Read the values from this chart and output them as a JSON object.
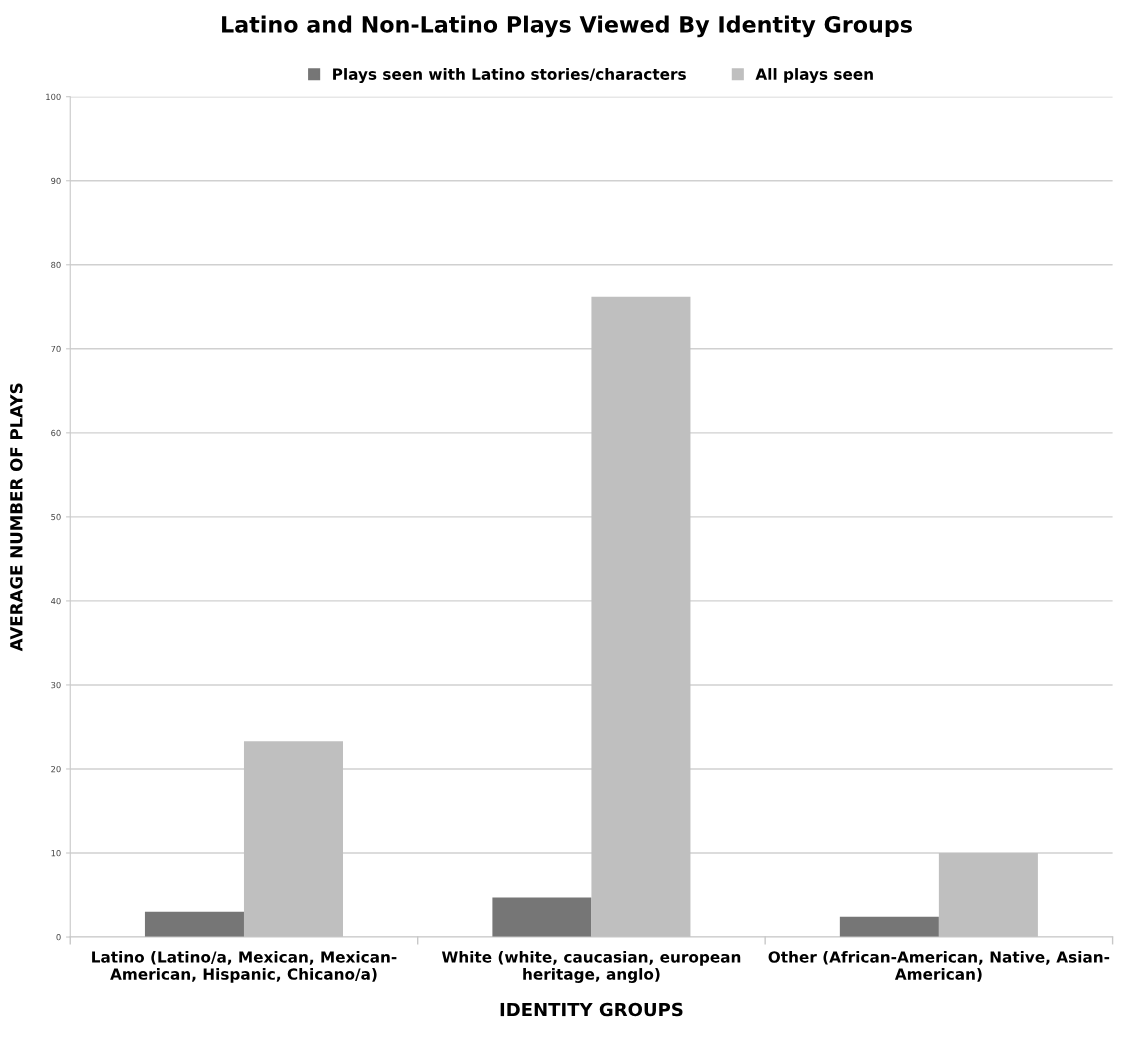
{
  "chart_data": {
    "type": "bar",
    "title": "Latino and Non-Latino Plays Viewed By Identity Groups",
    "xlabel": "IDENTITY GROUPS",
    "ylabel": "AVERAGE NUMBER OF PLAYS",
    "categories": [
      "Latino (Latino/a, Mexican, Mexican-\nAmerican, Hispanic, Chicano/a)",
      "White (white, caucasian, european\nheritage, anglo)",
      "Other (African-American, Native, Asian-\nAmerican)"
    ],
    "series": [
      {
        "name": "Plays seen with Latino stories/characters",
        "color": "#767676",
        "values": [
          3.0,
          4.7,
          2.4
        ]
      },
      {
        "name": "All plays seen",
        "color": "#bfbfbf",
        "values": [
          23.3,
          76.2,
          10.0
        ]
      }
    ],
    "ylim": [
      0,
      100
    ],
    "yticks": [
      0,
      10,
      20,
      30,
      40,
      50,
      60,
      70,
      80,
      90,
      100
    ],
    "grid": "y",
    "legend": "top"
  }
}
